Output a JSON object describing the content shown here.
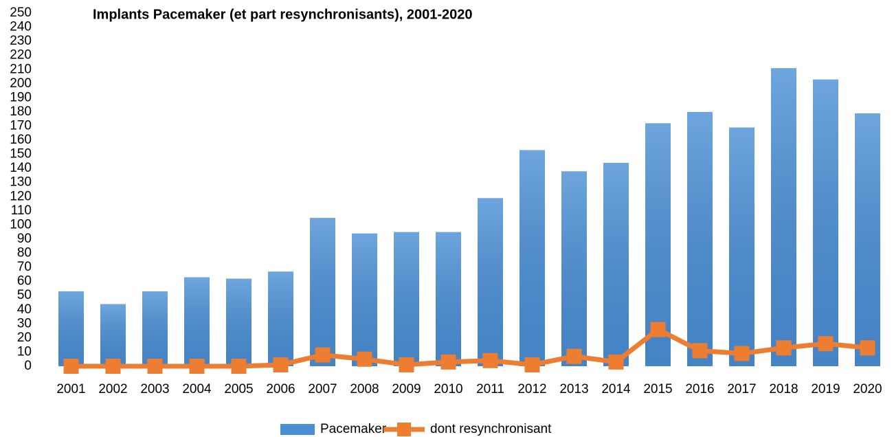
{
  "chart_data": {
    "type": "bar",
    "title": "Implants Pacemaker (et part resynchronisants), 2001-2020",
    "categories": [
      "2001",
      "2002",
      "2003",
      "2004",
      "2005",
      "2006",
      "2007",
      "2008",
      "2009",
      "2010",
      "2011",
      "2012",
      "2013",
      "2014",
      "2015",
      "2016",
      "2017",
      "2018",
      "2019",
      "2020"
    ],
    "series": [
      {
        "name": "Pacemaker",
        "type": "bar",
        "color": "#4a8fd6",
        "values": [
          53,
          44,
          53,
          63,
          62,
          67,
          105,
          94,
          95,
          95,
          119,
          153,
          138,
          144,
          172,
          180,
          169,
          211,
          203,
          179
        ]
      },
      {
        "name": "dont resynchronisant",
        "type": "line",
        "color": "#ed7d31",
        "values": [
          0,
          0,
          0,
          0,
          0,
          1,
          8,
          5,
          1,
          3,
          4,
          1,
          7,
          3,
          26,
          11,
          9,
          13,
          16,
          13
        ]
      }
    ],
    "ylim": [
      0,
      250
    ],
    "yticks": [
      0,
      10,
      20,
      30,
      40,
      50,
      60,
      70,
      80,
      90,
      100,
      110,
      120,
      130,
      140,
      150,
      160,
      170,
      180,
      190,
      200,
      210,
      220,
      230,
      240,
      250
    ],
    "grid": false,
    "legend": "bottom"
  }
}
